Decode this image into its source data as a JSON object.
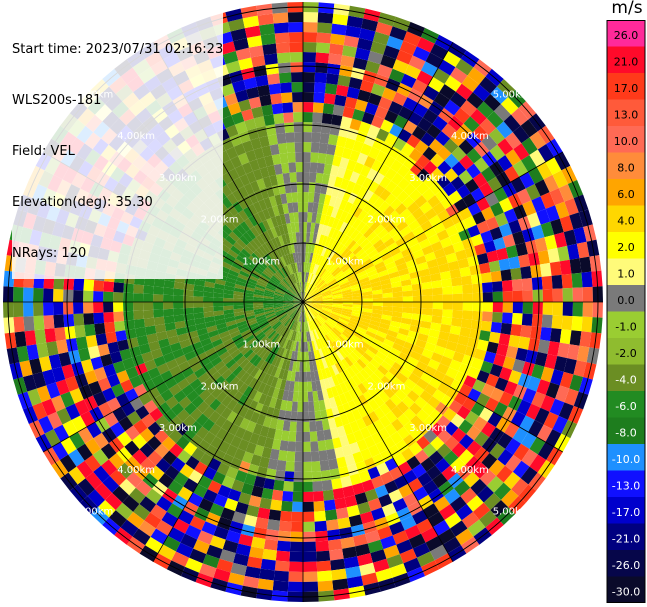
{
  "header": {
    "start_time": "Start time: 2023/07/31 02:16:23",
    "instrument": "WLS200s-181",
    "field": "Field: VEL",
    "elevation": "Elevation(deg): 35.30",
    "nrays": "NRays: 120"
  },
  "colorbar": {
    "unit": "m/s",
    "labels": [
      "26.0",
      "21.0",
      "17.0",
      "13.0",
      "10.0",
      "8.0",
      "6.0",
      "4.0",
      "2.0",
      "1.0",
      "0.0",
      "-1.0",
      "-2.0",
      "-4.0",
      "-6.0",
      "-8.0",
      "-10.0",
      "-13.0",
      "-17.0",
      "-21.0",
      "-26.0",
      "-30.0"
    ],
    "colors": [
      "#ff2a9a",
      "#ff0a2a",
      "#ff3a1a",
      "#ff5a3a",
      "#ff6a55",
      "#ff8c3a",
      "#ffa500",
      "#ffd700",
      "#ffff00",
      "#fffb7a",
      "#7a7a7a",
      "#9acd32",
      "#8fbc2f",
      "#6b8e23",
      "#228b22",
      "#1e7d1e",
      "#1e90ff",
      "#1010ff",
      "#0000cc",
      "#000080",
      "#06064a",
      "#0a0a2a"
    ]
  },
  "chart_data": {
    "type": "heatmap",
    "title": "",
    "field": "VEL",
    "units": "m/s",
    "projection": "polar PPI",
    "nrays": 120,
    "elevation_deg": 35.3,
    "range_ring_labels": [
      "1.00km",
      "2.00km",
      "3.00km",
      "4.00km",
      "5.00km"
    ],
    "range_rings_km": [
      1,
      2,
      3,
      4,
      5
    ],
    "max_range_km": 5.0,
    "gates_per_ray": 30,
    "color_scale": [
      -30,
      -26,
      -21,
      -17,
      -13,
      -10,
      -8,
      -6,
      -4,
      -2,
      -1,
      0,
      1,
      2,
      4,
      6,
      8,
      10,
      13,
      17,
      21,
      26
    ],
    "velocity_pattern": {
      "west_sector_mean_ms": -3.0,
      "east_sector_mean_ms": 3.0,
      "zero_line_bearing_deg": [
        0,
        180
      ],
      "valid_range_km": [
        0.0,
        3.0
      ],
      "noise_beyond_km": 3.0
    }
  }
}
